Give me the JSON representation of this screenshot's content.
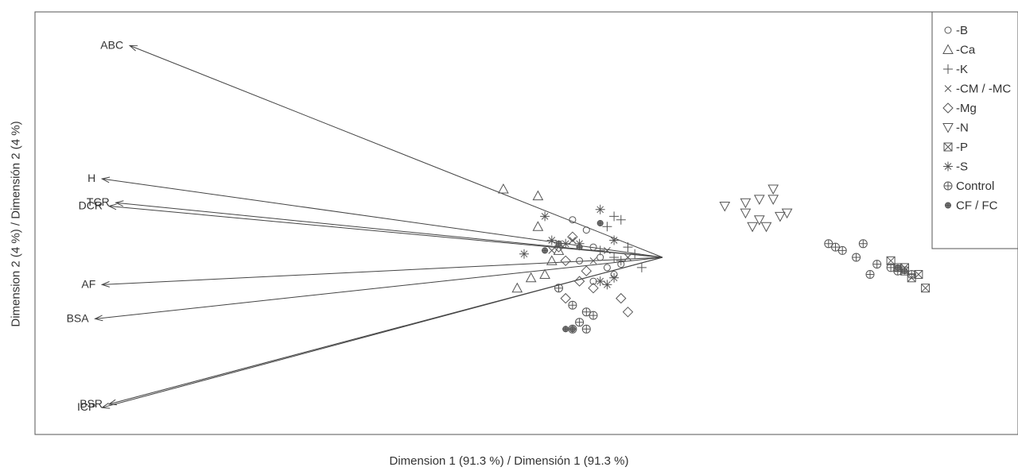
{
  "chart_data": {
    "type": "scatter",
    "title": "",
    "xlabel": "Dimension 1 (91.3 %) / Dimensión 1 (91.3 %)",
    "ylabel": "Dimension 2 (4 %) / Dimensión 2 (4 %)",
    "legend_position": "top-right",
    "grid": false,
    "vectors": [
      {
        "label": "ABC",
        "x": -7.7,
        "y": 6.2
      },
      {
        "label": "H",
        "x": -8.1,
        "y": 2.3
      },
      {
        "label": "TCR",
        "x": -7.9,
        "y": 1.6
      },
      {
        "label": "DCR",
        "x": -8.0,
        "y": 1.5
      },
      {
        "label": "AF",
        "x": -8.1,
        "y": -0.8
      },
      {
        "label": "BSA",
        "x": -8.2,
        "y": -1.8
      },
      {
        "label": "BSR",
        "x": -8.0,
        "y": -4.3
      },
      {
        "label": "ICP",
        "x": -8.1,
        "y": -4.4
      }
    ],
    "series": [
      {
        "name": "-B",
        "marker": "circle",
        "points": [
          [
            -1.3,
            1.1
          ],
          [
            -1.1,
            0.8
          ],
          [
            -1.0,
            0.3
          ],
          [
            -0.9,
            0.0
          ],
          [
            -0.8,
            -0.3
          ],
          [
            -1.2,
            -0.1
          ],
          [
            -0.7,
            -0.5
          ],
          [
            -1.0,
            -0.7
          ],
          [
            -0.6,
            -0.2
          ]
        ]
      },
      {
        "name": "-Ca",
        "marker": "triangle-up",
        "points": [
          [
            -2.3,
            2.0
          ],
          [
            -1.8,
            1.8
          ],
          [
            -1.8,
            0.9
          ],
          [
            -1.9,
            -0.6
          ],
          [
            -2.1,
            -0.9
          ],
          [
            -1.7,
            -0.5
          ],
          [
            -1.5,
            0.2
          ],
          [
            -1.6,
            -0.1
          ]
        ]
      },
      {
        "name": "-K",
        "marker": "plus",
        "points": [
          [
            -0.7,
            1.2
          ],
          [
            -0.6,
            1.1
          ],
          [
            -0.8,
            0.9
          ],
          [
            -0.4,
            0.1
          ],
          [
            -0.5,
            0.3
          ],
          [
            -0.7,
            0.0
          ],
          [
            -0.3,
            -0.3
          ],
          [
            -0.6,
            -0.1
          ],
          [
            -0.9,
            0.2
          ]
        ]
      },
      {
        "name": "-CM / -MC",
        "marker": "x",
        "points": [
          [
            -1.5,
            0.4
          ],
          [
            -1.3,
            0.5
          ],
          [
            -1.0,
            -0.1
          ],
          [
            -1.6,
            0.2
          ],
          [
            -0.5,
            0.0
          ],
          [
            -0.8,
            0.2
          ]
        ]
      },
      {
        "name": "-Mg",
        "marker": "diamond",
        "points": [
          [
            -1.5,
            0.3
          ],
          [
            -1.4,
            -0.1
          ],
          [
            -1.2,
            -0.7
          ],
          [
            -1.4,
            -1.2
          ],
          [
            -0.6,
            -1.2
          ],
          [
            -0.5,
            -1.6
          ],
          [
            -1.0,
            -0.9
          ],
          [
            -1.1,
            -0.4
          ],
          [
            -1.3,
            0.6
          ]
        ]
      },
      {
        "name": "-N",
        "marker": "triangle-down",
        "points": [
          [
            0.9,
            1.5
          ],
          [
            1.2,
            1.6
          ],
          [
            1.4,
            1.7
          ],
          [
            1.2,
            1.3
          ],
          [
            1.4,
            1.1
          ],
          [
            1.3,
            0.9
          ],
          [
            1.6,
            1.7
          ],
          [
            1.7,
            1.2
          ],
          [
            1.8,
            1.3
          ],
          [
            1.5,
            0.9
          ],
          [
            1.6,
            2.0
          ]
        ]
      },
      {
        "name": "-P",
        "marker": "box-x",
        "points": [
          [
            3.3,
            -0.1
          ],
          [
            3.4,
            -0.3
          ],
          [
            3.5,
            -0.4
          ],
          [
            3.6,
            -0.6
          ],
          [
            3.8,
            -0.9
          ],
          [
            3.5,
            -0.3
          ],
          [
            3.7,
            -0.5
          ]
        ]
      },
      {
        "name": "-S",
        "marker": "asterisk",
        "points": [
          [
            -1.7,
            1.2
          ],
          [
            -0.9,
            1.4
          ],
          [
            -1.6,
            0.5
          ],
          [
            -2.0,
            0.1
          ],
          [
            -1.4,
            0.4
          ],
          [
            -1.2,
            0.4
          ],
          [
            -0.7,
            0.5
          ],
          [
            -0.7,
            -0.6
          ],
          [
            -0.8,
            -0.8
          ],
          [
            -0.9,
            -0.7
          ]
        ]
      },
      {
        "name": "Control",
        "marker": "circle-plus",
        "points": [
          [
            2.4,
            0.4
          ],
          [
            2.5,
            0.3
          ],
          [
            2.6,
            0.2
          ],
          [
            2.8,
            0.0
          ],
          [
            2.9,
            0.4
          ],
          [
            3.0,
            -0.5
          ],
          [
            3.1,
            -0.2
          ],
          [
            3.3,
            -0.3
          ],
          [
            3.4,
            -0.4
          ],
          [
            3.6,
            -0.5
          ],
          [
            -1.5,
            -0.9
          ],
          [
            -1.3,
            -1.4
          ],
          [
            -1.1,
            -1.6
          ],
          [
            -1.2,
            -1.9
          ],
          [
            -1.3,
            -2.1
          ],
          [
            -1.1,
            -2.1
          ],
          [
            -1.0,
            -1.7
          ]
        ]
      },
      {
        "name": "CF / FC",
        "marker": "small-circle-plus",
        "points": [
          [
            -1.4,
            -2.1
          ],
          [
            -1.3,
            -2.1
          ],
          [
            -1.5,
            0.4
          ],
          [
            -1.7,
            0.2
          ],
          [
            -1.2,
            0.3
          ],
          [
            -0.9,
            1.0
          ],
          [
            3.4,
            -0.3
          ],
          [
            3.5,
            -0.4
          ]
        ]
      }
    ]
  }
}
